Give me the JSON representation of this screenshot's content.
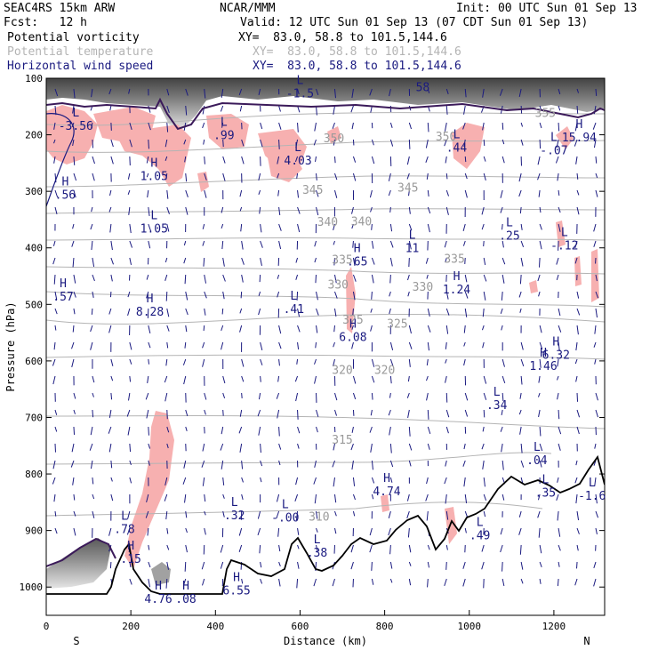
{
  "header": {
    "model": "SEAC4RS 15km ARW",
    "org": "NCAR/MMM",
    "init": "Init: 00 UTC Sun 01 Sep 13",
    "fcst": "Fcst:   12 h",
    "valid": "Valid: 12 UTC Sun 01 Sep 13 (07 CDT Sun 01 Sep 13)",
    "fields": [
      {
        "name": "Potential vorticity",
        "xy": "XY=  83.0, 58.8 to 101.5,144.6",
        "color": "#000000"
      },
      {
        "name": "Potential temperature",
        "xy": "XY=  83.0, 58.8 to 101.5,144.6",
        "color": "#b4b4b4"
      },
      {
        "name": "Horizontal wind speed",
        "xy": "XY=  83.0, 58.8 to 101.5,144.6",
        "color": "#1a1a80"
      }
    ]
  },
  "colors": {
    "pv_shade": "#f7b0b0",
    "wind_contour": "#1a1a80",
    "theta_contour": "#b4b4b4",
    "terrain": "#000000",
    "strat_shade": "#555555"
  },
  "chart_data": {
    "type": "vertical-cross-section",
    "xlabel": "Distance (km)",
    "ylabel": "Pressure (hPa)",
    "xlim": [
      0,
      1320
    ],
    "ylim": [
      1050,
      100
    ],
    "x_ticks": [
      "0",
      "200",
      "400",
      "600",
      "800",
      "1000",
      "1200"
    ],
    "y_ticks": [
      "100",
      "200",
      "300",
      "400",
      "500",
      "600",
      "700",
      "800",
      "900",
      "1000"
    ],
    "end_labels": {
      "left": "S",
      "right": "N"
    },
    "theta_contours": [
      {
        "value": "355",
        "label_points": [
          {
            "x": 1180,
            "p": 162
          }
        ]
      },
      {
        "value": "350",
        "label_points": [
          {
            "x": 680,
            "p": 207
          },
          {
            "x": 945,
            "p": 204
          }
        ]
      },
      {
        "value": "345",
        "label_points": [
          {
            "x": 630,
            "p": 298
          },
          {
            "x": 855,
            "p": 294
          }
        ]
      },
      {
        "value": "340",
        "label_points": [
          {
            "x": 665,
            "p": 355
          },
          {
            "x": 745,
            "p": 354
          }
        ]
      },
      {
        "value": "335",
        "label_points": [
          {
            "x": 700,
            "p": 422
          },
          {
            "x": 965,
            "p": 420
          }
        ]
      },
      {
        "value": "330",
        "label_points": [
          {
            "x": 690,
            "p": 466
          },
          {
            "x": 890,
            "p": 470
          }
        ]
      },
      {
        "value": "325",
        "label_points": [
          {
            "x": 725,
            "p": 528
          },
          {
            "x": 830,
            "p": 535
          }
        ]
      },
      {
        "value": "320",
        "label_points": [
          {
            "x": 700,
            "p": 617
          },
          {
            "x": 800,
            "p": 617
          }
        ]
      },
      {
        "value": "315",
        "label_points": [
          {
            "x": 700,
            "p": 740
          }
        ]
      },
      {
        "value": "310",
        "label_points": [
          {
            "x": 645,
            "p": 876
          }
        ]
      }
    ],
    "hl_markers": [
      {
        "kind": "L",
        "value": "-3.56",
        "x": 70,
        "p": 183
      },
      {
        "kind": "H",
        "value": ".56",
        "x": 45,
        "p": 305
      },
      {
        "kind": "H",
        "value": ".57",
        "x": 40,
        "p": 485
      },
      {
        "kind": "H",
        "value": "1.05",
        "x": 255,
        "p": 272
      },
      {
        "kind": "L",
        "value": "1.05",
        "x": 255,
        "p": 365
      },
      {
        "kind": "H",
        "value": "8.28",
        "x": 245,
        "p": 512
      },
      {
        "kind": "L",
        "value": ".99",
        "x": 420,
        "p": 200
      },
      {
        "kind": "L",
        "value": "-1.5",
        "x": 600,
        "p": 126
      },
      {
        "kind": "L",
        "value": "4.03",
        "x": 595,
        "p": 245
      },
      {
        "kind": "L",
        "value": ".41",
        "x": 585,
        "p": 507
      },
      {
        "kind": "H",
        "value": ".65",
        "x": 735,
        "p": 423
      },
      {
        "kind": "H",
        "value": "6.08",
        "x": 725,
        "p": 557
      },
      {
        "kind": "L",
        "value": "11",
        "x": 865,
        "p": 400
      },
      {
        "kind": "H",
        "value": "1.24",
        "x": 970,
        "p": 473
      },
      {
        "kind": "L",
        "value": ".44",
        "x": 970,
        "p": 222
      },
      {
        "kind": "58",
        "value": "58",
        "x": 890,
        "p": 115
      },
      {
        "kind": "L",
        "value": ".25",
        "x": 1095,
        "p": 378
      },
      {
        "kind": "L",
        "value": ".34",
        "x": 1065,
        "p": 677
      },
      {
        "kind": "L",
        "value": "-.07",
        "x": 1200,
        "p": 227
      },
      {
        "kind": "H",
        "value": "15.94",
        "x": 1260,
        "p": 204
      },
      {
        "kind": "L",
        "value": "-.12",
        "x": 1225,
        "p": 395
      },
      {
        "kind": "H",
        "value": "6.32",
        "x": 1205,
        "p": 588
      },
      {
        "kind": "H",
        "value": "1.46",
        "x": 1175,
        "p": 608
      },
      {
        "kind": "L",
        "value": ".04",
        "x": 1160,
        "p": 775
      },
      {
        "kind": "L",
        "value": ".35",
        "x": 1180,
        "p": 832
      },
      {
        "kind": "L",
        "value": "-1.6",
        "x": 1290,
        "p": 838
      },
      {
        "kind": "H",
        "value": "4.74",
        "x": 805,
        "p": 830
      },
      {
        "kind": "L",
        "value": ".49",
        "x": 1025,
        "p": 908
      },
      {
        "kind": "L",
        "value": ".32",
        "x": 445,
        "p": 872
      },
      {
        "kind": "L",
        "value": "-.00",
        "x": 565,
        "p": 876
      },
      {
        "kind": "L",
        "value": ".38",
        "x": 640,
        "p": 938
      },
      {
        "kind": "L",
        "value": ".78",
        "x": 185,
        "p": 897
      },
      {
        "kind": "H",
        "value": ".15",
        "x": 200,
        "p": 949
      },
      {
        "kind": "H",
        "value": "4.76",
        "x": 265,
        "p": 1020
      },
      {
        "kind": "H",
        "value": ".08",
        "x": 330,
        "p": 1020
      },
      {
        "kind": "H",
        "value": "6.55",
        "x": 450,
        "p": 1005
      }
    ]
  }
}
